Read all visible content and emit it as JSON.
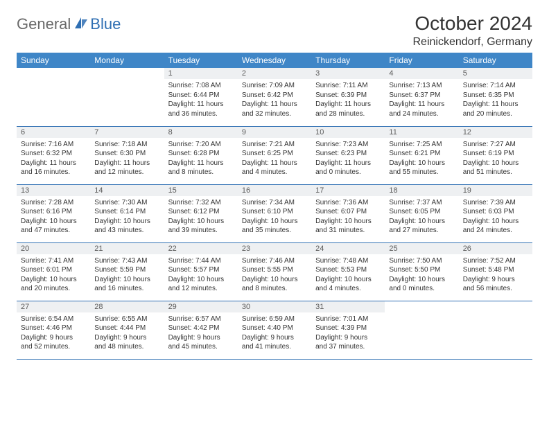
{
  "brand": {
    "general": "General",
    "blue": "Blue"
  },
  "title": "October 2024",
  "location": "Reinickendorf, Germany",
  "colors": {
    "header_bg": "#3f86c7",
    "header_text": "#ffffff",
    "daynum_bg": "#eef0f2",
    "daynum_text": "#5a5a5a",
    "cell_border": "#2f6fb3",
    "logo_general": "#6a6a6a",
    "logo_blue": "#2f6fb3",
    "text": "#333333"
  },
  "day_headers": [
    "Sunday",
    "Monday",
    "Tuesday",
    "Wednesday",
    "Thursday",
    "Friday",
    "Saturday"
  ],
  "weeks": [
    [
      {
        "n": "",
        "sr": "",
        "ss": "",
        "dl": ""
      },
      {
        "n": "",
        "sr": "",
        "ss": "",
        "dl": ""
      },
      {
        "n": "1",
        "sr": "Sunrise: 7:08 AM",
        "ss": "Sunset: 6:44 PM",
        "dl": "Daylight: 11 hours and 36 minutes."
      },
      {
        "n": "2",
        "sr": "Sunrise: 7:09 AM",
        "ss": "Sunset: 6:42 PM",
        "dl": "Daylight: 11 hours and 32 minutes."
      },
      {
        "n": "3",
        "sr": "Sunrise: 7:11 AM",
        "ss": "Sunset: 6:39 PM",
        "dl": "Daylight: 11 hours and 28 minutes."
      },
      {
        "n": "4",
        "sr": "Sunrise: 7:13 AM",
        "ss": "Sunset: 6:37 PM",
        "dl": "Daylight: 11 hours and 24 minutes."
      },
      {
        "n": "5",
        "sr": "Sunrise: 7:14 AM",
        "ss": "Sunset: 6:35 PM",
        "dl": "Daylight: 11 hours and 20 minutes."
      }
    ],
    [
      {
        "n": "6",
        "sr": "Sunrise: 7:16 AM",
        "ss": "Sunset: 6:32 PM",
        "dl": "Daylight: 11 hours and 16 minutes."
      },
      {
        "n": "7",
        "sr": "Sunrise: 7:18 AM",
        "ss": "Sunset: 6:30 PM",
        "dl": "Daylight: 11 hours and 12 minutes."
      },
      {
        "n": "8",
        "sr": "Sunrise: 7:20 AM",
        "ss": "Sunset: 6:28 PM",
        "dl": "Daylight: 11 hours and 8 minutes."
      },
      {
        "n": "9",
        "sr": "Sunrise: 7:21 AM",
        "ss": "Sunset: 6:25 PM",
        "dl": "Daylight: 11 hours and 4 minutes."
      },
      {
        "n": "10",
        "sr": "Sunrise: 7:23 AM",
        "ss": "Sunset: 6:23 PM",
        "dl": "Daylight: 11 hours and 0 minutes."
      },
      {
        "n": "11",
        "sr": "Sunrise: 7:25 AM",
        "ss": "Sunset: 6:21 PM",
        "dl": "Daylight: 10 hours and 55 minutes."
      },
      {
        "n": "12",
        "sr": "Sunrise: 7:27 AM",
        "ss": "Sunset: 6:19 PM",
        "dl": "Daylight: 10 hours and 51 minutes."
      }
    ],
    [
      {
        "n": "13",
        "sr": "Sunrise: 7:28 AM",
        "ss": "Sunset: 6:16 PM",
        "dl": "Daylight: 10 hours and 47 minutes."
      },
      {
        "n": "14",
        "sr": "Sunrise: 7:30 AM",
        "ss": "Sunset: 6:14 PM",
        "dl": "Daylight: 10 hours and 43 minutes."
      },
      {
        "n": "15",
        "sr": "Sunrise: 7:32 AM",
        "ss": "Sunset: 6:12 PM",
        "dl": "Daylight: 10 hours and 39 minutes."
      },
      {
        "n": "16",
        "sr": "Sunrise: 7:34 AM",
        "ss": "Sunset: 6:10 PM",
        "dl": "Daylight: 10 hours and 35 minutes."
      },
      {
        "n": "17",
        "sr": "Sunrise: 7:36 AM",
        "ss": "Sunset: 6:07 PM",
        "dl": "Daylight: 10 hours and 31 minutes."
      },
      {
        "n": "18",
        "sr": "Sunrise: 7:37 AM",
        "ss": "Sunset: 6:05 PM",
        "dl": "Daylight: 10 hours and 27 minutes."
      },
      {
        "n": "19",
        "sr": "Sunrise: 7:39 AM",
        "ss": "Sunset: 6:03 PM",
        "dl": "Daylight: 10 hours and 24 minutes."
      }
    ],
    [
      {
        "n": "20",
        "sr": "Sunrise: 7:41 AM",
        "ss": "Sunset: 6:01 PM",
        "dl": "Daylight: 10 hours and 20 minutes."
      },
      {
        "n": "21",
        "sr": "Sunrise: 7:43 AM",
        "ss": "Sunset: 5:59 PM",
        "dl": "Daylight: 10 hours and 16 minutes."
      },
      {
        "n": "22",
        "sr": "Sunrise: 7:44 AM",
        "ss": "Sunset: 5:57 PM",
        "dl": "Daylight: 10 hours and 12 minutes."
      },
      {
        "n": "23",
        "sr": "Sunrise: 7:46 AM",
        "ss": "Sunset: 5:55 PM",
        "dl": "Daylight: 10 hours and 8 minutes."
      },
      {
        "n": "24",
        "sr": "Sunrise: 7:48 AM",
        "ss": "Sunset: 5:53 PM",
        "dl": "Daylight: 10 hours and 4 minutes."
      },
      {
        "n": "25",
        "sr": "Sunrise: 7:50 AM",
        "ss": "Sunset: 5:50 PM",
        "dl": "Daylight: 10 hours and 0 minutes."
      },
      {
        "n": "26",
        "sr": "Sunrise: 7:52 AM",
        "ss": "Sunset: 5:48 PM",
        "dl": "Daylight: 9 hours and 56 minutes."
      }
    ],
    [
      {
        "n": "27",
        "sr": "Sunrise: 6:54 AM",
        "ss": "Sunset: 4:46 PM",
        "dl": "Daylight: 9 hours and 52 minutes."
      },
      {
        "n": "28",
        "sr": "Sunrise: 6:55 AM",
        "ss": "Sunset: 4:44 PM",
        "dl": "Daylight: 9 hours and 48 minutes."
      },
      {
        "n": "29",
        "sr": "Sunrise: 6:57 AM",
        "ss": "Sunset: 4:42 PM",
        "dl": "Daylight: 9 hours and 45 minutes."
      },
      {
        "n": "30",
        "sr": "Sunrise: 6:59 AM",
        "ss": "Sunset: 4:40 PM",
        "dl": "Daylight: 9 hours and 41 minutes."
      },
      {
        "n": "31",
        "sr": "Sunrise: 7:01 AM",
        "ss": "Sunset: 4:39 PM",
        "dl": "Daylight: 9 hours and 37 minutes."
      },
      {
        "n": "",
        "sr": "",
        "ss": "",
        "dl": ""
      },
      {
        "n": "",
        "sr": "",
        "ss": "",
        "dl": ""
      }
    ]
  ]
}
